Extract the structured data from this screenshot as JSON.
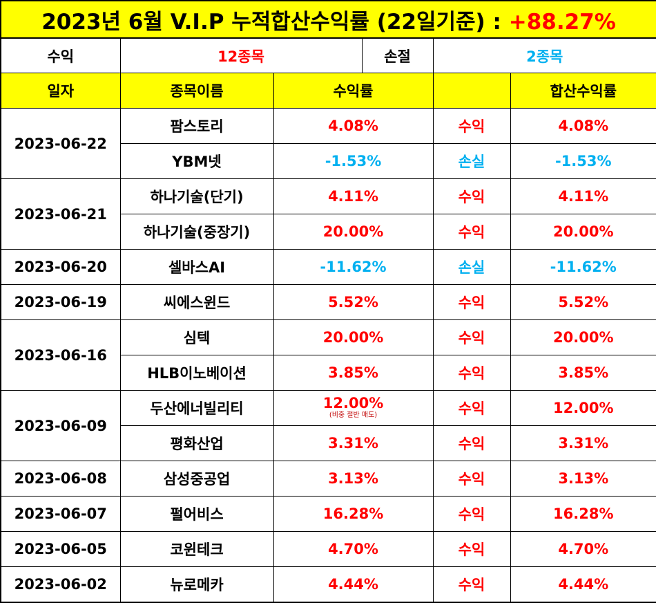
{
  "title": {
    "text": "2023년 6월 V.I.P 누적합산수익률 (22일기준) :",
    "total": "+88.27%"
  },
  "summary": {
    "profit_label": "수익",
    "profit_count": "12종목",
    "loss_label": "손절",
    "loss_count": "2종목"
  },
  "headers": {
    "date": "일자",
    "name": "종목이름",
    "rate": "수익률",
    "result": "",
    "total": "합산수익률"
  },
  "groups": [
    {
      "date": "2023-06-22",
      "rows": [
        {
          "name": "팜스토리",
          "rate": "4.08%",
          "result": "수익",
          "total": "4.08%",
          "tone": "red"
        },
        {
          "name": "YBM넷",
          "rate": "-1.53%",
          "result": "손실",
          "total": "-1.53%",
          "tone": "blue"
        }
      ]
    },
    {
      "date": "2023-06-21",
      "rows": [
        {
          "name": "하나기술(단기)",
          "rate": "4.11%",
          "result": "수익",
          "total": "4.11%",
          "tone": "red"
        },
        {
          "name": "하나기술(중장기)",
          "rate": "20.00%",
          "result": "수익",
          "total": "20.00%",
          "tone": "red"
        }
      ]
    },
    {
      "date": "2023-06-20",
      "rows": [
        {
          "name": "셀바스AI",
          "rate": "-11.62%",
          "result": "손실",
          "total": "-11.62%",
          "tone": "blue"
        }
      ]
    },
    {
      "date": "2023-06-19",
      "rows": [
        {
          "name": "씨에스윈드",
          "rate": "5.52%",
          "result": "수익",
          "total": "5.52%",
          "tone": "red"
        }
      ]
    },
    {
      "date": "2023-06-16",
      "rows": [
        {
          "name": "심텍",
          "rate": "20.00%",
          "result": "수익",
          "total": "20.00%",
          "tone": "red"
        },
        {
          "name": "HLB이노베이션",
          "rate": "3.85%",
          "result": "수익",
          "total": "3.85%",
          "tone": "red"
        }
      ]
    },
    {
      "date": "2023-06-09",
      "rows": [
        {
          "name": "두산에너빌리티",
          "rate": "12.00%",
          "note": "(비중 절반 매도)",
          "result": "수익",
          "total": "12.00%",
          "tone": "red"
        },
        {
          "name": "평화산업",
          "rate": "3.31%",
          "result": "수익",
          "total": "3.31%",
          "tone": "red"
        }
      ]
    },
    {
      "date": "2023-06-08",
      "rows": [
        {
          "name": "삼성중공업",
          "rate": "3.13%",
          "result": "수익",
          "total": "3.13%",
          "tone": "red"
        }
      ]
    },
    {
      "date": "2023-06-07",
      "rows": [
        {
          "name": "펄어비스",
          "rate": "16.28%",
          "result": "수익",
          "total": "16.28%",
          "tone": "red"
        }
      ]
    },
    {
      "date": "2023-06-05",
      "rows": [
        {
          "name": "코윈테크",
          "rate": "4.70%",
          "result": "수익",
          "total": "4.70%",
          "tone": "red"
        }
      ]
    },
    {
      "date": "2023-06-02",
      "rows": [
        {
          "name": "뉴로메카",
          "rate": "4.44%",
          "result": "수익",
          "total": "4.44%",
          "tone": "red"
        }
      ]
    }
  ]
}
